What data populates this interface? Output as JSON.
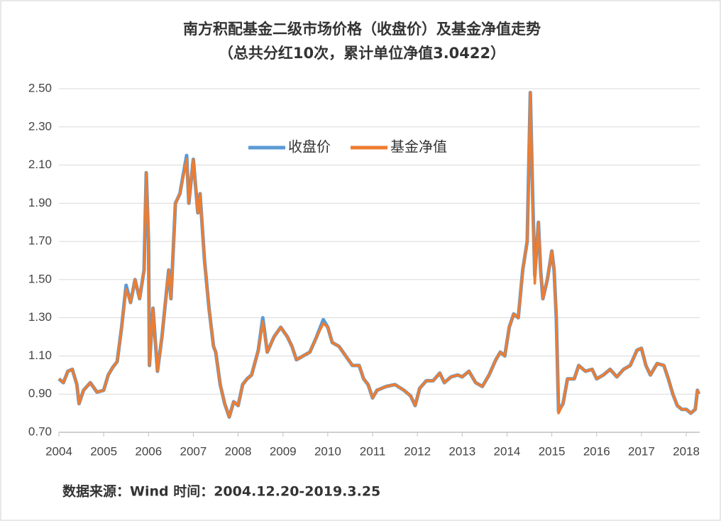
{
  "chart_data": {
    "type": "line",
    "title": "南方积配基金二级市场价格（收盘价）及基金净值走势",
    "subtitle": "（总共分红10次，累计单位净值3.0422）",
    "source_note": "数据来源：Wind 时间：2004.12.20-2019.3.25",
    "x": [
      2004.0,
      2004.1,
      2004.2,
      2004.3,
      2004.4,
      2004.45,
      2004.55,
      2004.7,
      2004.85,
      2005.0,
      2005.1,
      2005.2,
      2005.3,
      2005.4,
      2005.5,
      2005.6,
      2005.7,
      2005.8,
      2005.9,
      2005.95,
      2006.0,
      2006.02,
      2006.1,
      2006.2,
      2006.3,
      2006.45,
      2006.5,
      2006.6,
      2006.7,
      2006.85,
      2006.9,
      2007.0,
      2007.1,
      2007.15,
      2007.25,
      2007.35,
      2007.45,
      2007.5,
      2007.6,
      2007.7,
      2007.8,
      2007.9,
      2008.0,
      2008.1,
      2008.2,
      2008.3,
      2008.45,
      2008.55,
      2008.65,
      2008.8,
      2008.95,
      2009.1,
      2009.2,
      2009.3,
      2009.45,
      2009.6,
      2009.75,
      2009.9,
      2010.0,
      2010.1,
      2010.25,
      2010.4,
      2010.55,
      2010.7,
      2010.8,
      2010.9,
      2011.0,
      2011.1,
      2011.3,
      2011.5,
      2011.7,
      2011.85,
      2011.95,
      2012.05,
      2012.2,
      2012.35,
      2012.5,
      2012.6,
      2012.75,
      2012.9,
      2013.0,
      2013.15,
      2013.3,
      2013.45,
      2013.6,
      2013.75,
      2013.85,
      2013.95,
      2014.05,
      2014.15,
      2014.25,
      2014.35,
      2014.45,
      2014.52,
      2014.57,
      2014.62,
      2014.7,
      2014.75,
      2014.8,
      2014.9,
      2015.0,
      2015.05,
      2015.1,
      2015.15,
      2015.25,
      2015.35,
      2015.5,
      2015.6,
      2015.75,
      2015.9,
      2016.0,
      2016.15,
      2016.3,
      2016.45,
      2016.6,
      2016.75,
      2016.9,
      2017.0,
      2017.1,
      2017.2,
      2017.35,
      2017.5,
      2017.6,
      2017.7,
      2017.8,
      2017.9,
      2018.0,
      2018.1,
      2018.2,
      2018.25,
      2018.28
    ],
    "series": [
      {
        "name": "收盘价",
        "color": "#5b9bd5",
        "values": [
          0.98,
          0.96,
          1.02,
          1.03,
          0.95,
          0.85,
          0.92,
          0.96,
          0.91,
          0.92,
          1.0,
          1.04,
          1.07,
          1.25,
          1.47,
          1.38,
          1.5,
          1.4,
          1.55,
          2.06,
          1.7,
          1.05,
          1.35,
          1.02,
          1.2,
          1.55,
          1.4,
          1.9,
          1.95,
          2.15,
          1.9,
          2.13,
          1.85,
          1.95,
          1.6,
          1.35,
          1.15,
          1.12,
          0.95,
          0.85,
          0.78,
          0.86,
          0.84,
          0.95,
          0.98,
          1.0,
          1.13,
          1.3,
          1.12,
          1.2,
          1.25,
          1.2,
          1.15,
          1.08,
          1.1,
          1.12,
          1.2,
          1.29,
          1.25,
          1.17,
          1.15,
          1.1,
          1.05,
          1.05,
          0.98,
          0.95,
          0.88,
          0.92,
          0.94,
          0.95,
          0.92,
          0.89,
          0.84,
          0.93,
          0.97,
          0.97,
          1.01,
          0.96,
          0.99,
          1.0,
          0.99,
          1.02,
          0.96,
          0.94,
          1.0,
          1.08,
          1.12,
          1.1,
          1.25,
          1.32,
          1.3,
          1.55,
          1.7,
          2.48,
          1.95,
          1.52,
          1.8,
          1.55,
          1.4,
          1.5,
          1.65,
          1.55,
          1.3,
          0.81,
          0.85,
          0.98,
          0.98,
          1.05,
          1.02,
          1.03,
          0.98,
          1.0,
          1.03,
          0.99,
          1.03,
          1.05,
          1.13,
          1.14,
          1.05,
          1.0,
          1.06,
          1.05,
          0.98,
          0.9,
          0.84,
          0.82,
          0.82,
          0.8,
          0.82,
          0.92,
          0.9
        ]
      },
      {
        "name": "基金净值",
        "color": "#ed7d31",
        "values": [
          0.98,
          0.96,
          1.02,
          1.03,
          0.95,
          0.85,
          0.92,
          0.96,
          0.91,
          0.92,
          1.0,
          1.04,
          1.07,
          1.25,
          1.45,
          1.38,
          1.5,
          1.4,
          1.55,
          2.06,
          1.7,
          1.05,
          1.35,
          1.02,
          1.2,
          1.55,
          1.4,
          1.9,
          1.95,
          2.13,
          1.9,
          2.13,
          1.85,
          1.95,
          1.6,
          1.35,
          1.15,
          1.12,
          0.95,
          0.85,
          0.78,
          0.86,
          0.84,
          0.95,
          0.98,
          1.0,
          1.13,
          1.28,
          1.12,
          1.2,
          1.25,
          1.2,
          1.15,
          1.08,
          1.1,
          1.12,
          1.2,
          1.27,
          1.25,
          1.17,
          1.15,
          1.1,
          1.05,
          1.05,
          0.98,
          0.95,
          0.88,
          0.92,
          0.94,
          0.95,
          0.92,
          0.89,
          0.84,
          0.93,
          0.97,
          0.97,
          1.01,
          0.96,
          0.99,
          1.0,
          0.99,
          1.02,
          0.96,
          0.94,
          1.0,
          1.08,
          1.12,
          1.1,
          1.25,
          1.32,
          1.3,
          1.55,
          1.7,
          2.48,
          1.9,
          1.48,
          1.8,
          1.55,
          1.4,
          1.5,
          1.65,
          1.55,
          1.3,
          0.8,
          0.85,
          0.98,
          0.98,
          1.05,
          1.02,
          1.03,
          0.98,
          1.0,
          1.03,
          0.99,
          1.03,
          1.05,
          1.13,
          1.14,
          1.05,
          1.0,
          1.06,
          1.05,
          0.98,
          0.9,
          0.84,
          0.82,
          0.82,
          0.8,
          0.82,
          0.92,
          0.9
        ]
      }
    ],
    "xlim": [
      2004,
      2018.3
    ],
    "xticks": [
      2004,
      2005,
      2006,
      2007,
      2008,
      2009,
      2010,
      2011,
      2012,
      2013,
      2014,
      2015,
      2016,
      2017,
      2018
    ],
    "ylim": [
      0.7,
      2.5
    ],
    "yticks": [
      {
        "value": 0.7,
        "label": "0.70"
      },
      {
        "value": 0.9,
        "label": "0.90"
      },
      {
        "value": 1.1,
        "label": "1.10"
      },
      {
        "value": 1.3,
        "label": "1.30"
      },
      {
        "value": 1.5,
        "label": "1.50"
      },
      {
        "value": 1.7,
        "label": "1.70"
      },
      {
        "value": 1.9,
        "label": "1.90"
      },
      {
        "value": 2.1,
        "label": "2.10"
      },
      {
        "value": 2.3,
        "label": "2.30"
      },
      {
        "value": 2.5,
        "label": "2.50"
      }
    ],
    "grid": true,
    "legend": "top"
  }
}
